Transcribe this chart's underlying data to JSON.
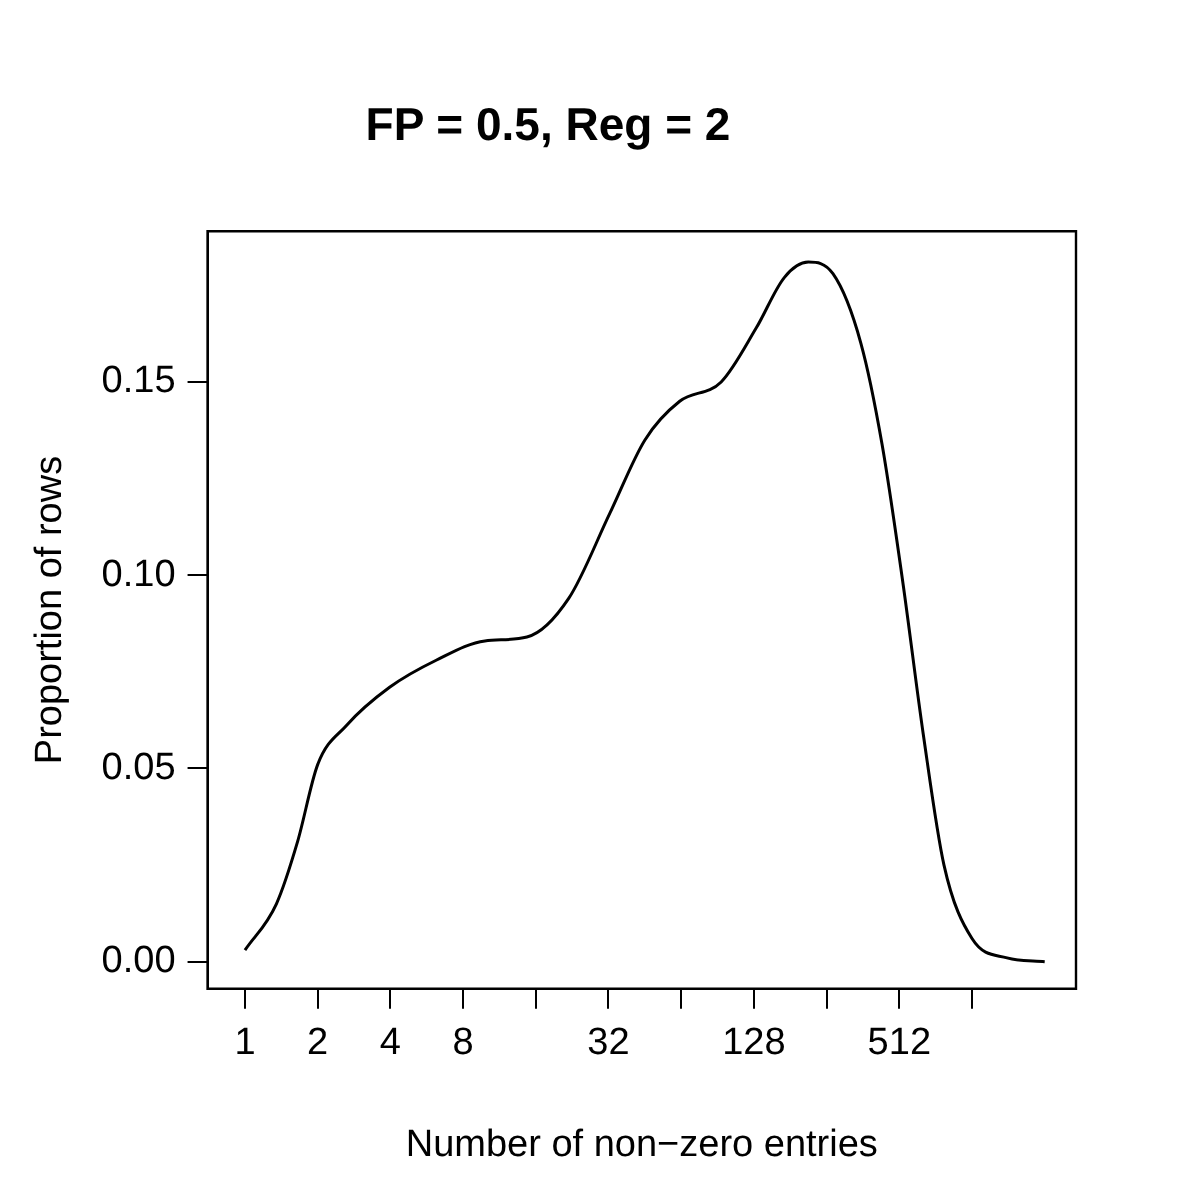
{
  "chart_data": {
    "type": "line",
    "title": "FP = 0.5, Reg = 2",
    "xlabel": "Number of non−zero entries",
    "ylabel": "Proportion of rows",
    "log": "x",
    "grid": false,
    "legend": false,
    "marker": "none",
    "line_style": "solid",
    "x": [
      1,
      1.35,
      1.65,
      2,
      2.62,
      3.97,
      6.19,
      9.85,
      14.7,
      21.9,
      32.4,
      45.3,
      63.1,
      93.7,
      131,
      171,
      215,
      272,
      355,
      434,
      530,
      643,
      784,
      1024,
      1430,
      2048
    ],
    "series": [
      {
        "color": "#000000",
        "values": [
          0.003,
          0.015,
          0.031,
          0.051,
          0.061,
          0.071,
          0.078,
          0.083,
          0.084,
          0.094,
          0.116,
          0.135,
          0.145,
          0.15,
          0.164,
          0.177,
          0.181,
          0.178,
          0.16,
          0.134,
          0.098,
          0.059,
          0.025,
          0.006,
          0.001,
          0.0
        ]
      }
    ],
    "xlim": [
      0.73,
      2760
    ],
    "xticks": [
      1,
      2,
      4,
      8,
      {
        "value": 16,
        "label": null
      },
      32,
      {
        "value": 64,
        "label": null
      },
      128,
      {
        "value": 256,
        "label": null
      },
      512,
      {
        "value": 1024,
        "label": null
      }
    ],
    "ylim": [
      -0.007,
      0.189
    ],
    "yticks": [
      {
        "value": 0,
        "label": "0.00"
      },
      {
        "value": 0.05,
        "label": "0.05"
      },
      {
        "value": 0.1,
        "label": "0.10"
      },
      {
        "value": 0.15,
        "label": "0.15"
      }
    ]
  }
}
